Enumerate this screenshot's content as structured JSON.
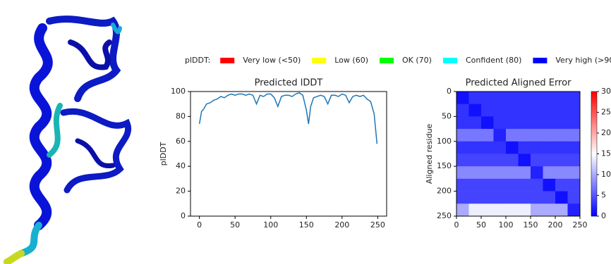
{
  "legend": {
    "title": "plDDT:",
    "items": [
      {
        "label": "Very low (<50)",
        "color": "#ff0000"
      },
      {
        "label": "Low (60)",
        "color": "#ffff00"
      },
      {
        "label": "OK (70)",
        "color": "#00ff00"
      },
      {
        "label": "Confident (80)",
        "color": "#00ffff"
      },
      {
        "label": "Very high (>90)",
        "color": "#0000ff"
      }
    ]
  },
  "chart_data": [
    {
      "type": "line",
      "title": "Predicted lDDT",
      "y_label": "plDDT",
      "color": "#1f77b4",
      "x": [
        0,
        3,
        6,
        10,
        15,
        20,
        25,
        30,
        35,
        40,
        45,
        50,
        55,
        60,
        65,
        70,
        75,
        80,
        85,
        90,
        95,
        100,
        105,
        110,
        115,
        120,
        125,
        130,
        135,
        140,
        145,
        150,
        153,
        156,
        160,
        165,
        170,
        175,
        180,
        185,
        190,
        195,
        200,
        205,
        210,
        215,
        220,
        225,
        230,
        235,
        240,
        245,
        247,
        249
      ],
      "values": [
        74,
        84,
        86,
        90,
        91,
        93,
        94,
        96,
        95,
        97,
        98,
        97,
        98,
        98,
        97,
        98,
        97,
        90,
        97,
        96,
        98,
        98,
        95,
        88,
        96,
        97,
        97,
        96,
        98,
        99,
        97,
        85,
        74,
        88,
        95,
        96,
        97,
        96,
        90,
        97,
        97,
        96,
        98,
        97,
        91,
        96,
        97,
        96,
        97,
        94,
        92,
        82,
        70,
        58
      ],
      "xlim": [
        -12.5,
        262.5
      ],
      "ylim": [
        0,
        100
      ],
      "xticks": [
        0,
        50,
        100,
        150,
        200,
        250
      ],
      "yticks": [
        0,
        20,
        40,
        60,
        80,
        100
      ]
    },
    {
      "type": "heatmap",
      "title": "Predicted Aligned Error",
      "y_label": "Aligned residue",
      "colormap": "bwr",
      "xlim": [
        0,
        250
      ],
      "ylim": [
        250,
        0
      ],
      "zlim": [
        0,
        30
      ],
      "xticks": [
        0,
        50,
        100,
        150,
        200,
        250
      ],
      "yticks": [
        0,
        50,
        100,
        150,
        200,
        250
      ],
      "colorbar_ticks": [
        0,
        5,
        10,
        15,
        20,
        25,
        30
      ],
      "z": [
        [
          1,
          3,
          3,
          3,
          3,
          3,
          3,
          3,
          3,
          3
        ],
        [
          3,
          1,
          3,
          3,
          3,
          3,
          3,
          3,
          3,
          3
        ],
        [
          3,
          3,
          1,
          3,
          3,
          3,
          3,
          3,
          3,
          3
        ],
        [
          7,
          7,
          7,
          2,
          7,
          7,
          7,
          7,
          7,
          7
        ],
        [
          3,
          3,
          3,
          3,
          1,
          3,
          3,
          3,
          3,
          3
        ],
        [
          4,
          4,
          4,
          4,
          4,
          1,
          4,
          4,
          4,
          4
        ],
        [
          8,
          8,
          8,
          8,
          8,
          8,
          2,
          8,
          8,
          8
        ],
        [
          4,
          4,
          4,
          4,
          4,
          4,
          4,
          1,
          4,
          4
        ],
        [
          4,
          4,
          4,
          4,
          4,
          4,
          4,
          4,
          1,
          4
        ],
        [
          10,
          14,
          14,
          14,
          14,
          14,
          10,
          10,
          10,
          2
        ]
      ]
    }
  ]
}
